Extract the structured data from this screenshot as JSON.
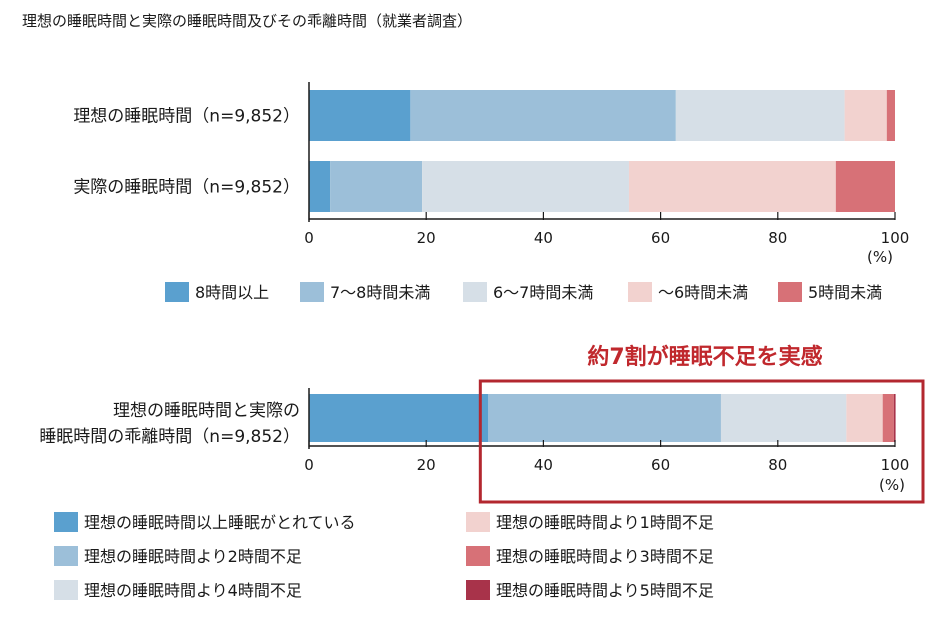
{
  "title": "理想の睡眠時間と実際の睡眠時間及びその乖離時間（就業者調査）",
  "chart_data": [
    {
      "type": "bar",
      "orientation": "horizontal",
      "stacked": true,
      "categories": [
        "理想の睡眠時間（n=9,852）",
        "実際の睡眠時間（n=9,852）"
      ],
      "series": [
        {
          "name": "8時間以上",
          "color": "#5aa0cf",
          "values": [
            17.3,
            3.6
          ]
        },
        {
          "name": "7～8時間未満",
          "color": "#9cbfd9",
          "values": [
            45.3,
            15.7
          ]
        },
        {
          "name": "6～7時間未満",
          "color": "#d6dfe7",
          "values": [
            28.8,
            35.3
          ]
        },
        {
          "name": "～6時間未満",
          "color": "#f2d2cf",
          "values": [
            7.2,
            35.3
          ]
        },
        {
          "name": "5時間未満",
          "color": "#d77177",
          "values": [
            1.4,
            10.1
          ]
        }
      ],
      "xlim": [
        0,
        100
      ],
      "xticks": [
        0,
        20,
        40,
        60,
        80,
        100
      ],
      "unit_label": "(%)",
      "legend": "bottom"
    },
    {
      "type": "bar",
      "orientation": "horizontal",
      "stacked": true,
      "categories": [
        "理想の睡眠時間と実際の\n睡眠時間の乖離時間（n=9,852）"
      ],
      "series": [
        {
          "name": "理想の睡眠時間以上睡眠がとれている",
          "color": "#5aa0cf",
          "values": [
            30.6
          ]
        },
        {
          "name": "理想の睡眠時間より2時間不足",
          "color": "#9cbfd9",
          "values": [
            39.7
          ]
        },
        {
          "name": "理想の睡眠時間より4時間不足",
          "color": "#d6dfe7",
          "values": [
            21.4
          ]
        },
        {
          "name": "理想の睡眠時間より1時間不足",
          "color": "#f2d2cf",
          "values": [
            6.2
          ]
        },
        {
          "name": "理想の睡眠時間より3時間不足",
          "color": "#d77177",
          "values": [
            1.9
          ]
        },
        {
          "name": "理想の睡眠時間より5時間不足",
          "color": "#a8334a",
          "values": [
            0.3
          ]
        }
      ],
      "xlim": [
        0,
        100
      ],
      "xticks": [
        0,
        20,
        40,
        60,
        80,
        100
      ],
      "unit_label": "(%)",
      "legend": "bottom",
      "annotation": "約7割が睡眠不足を実感",
      "highlight_range": [
        30.6,
        100
      ]
    }
  ]
}
